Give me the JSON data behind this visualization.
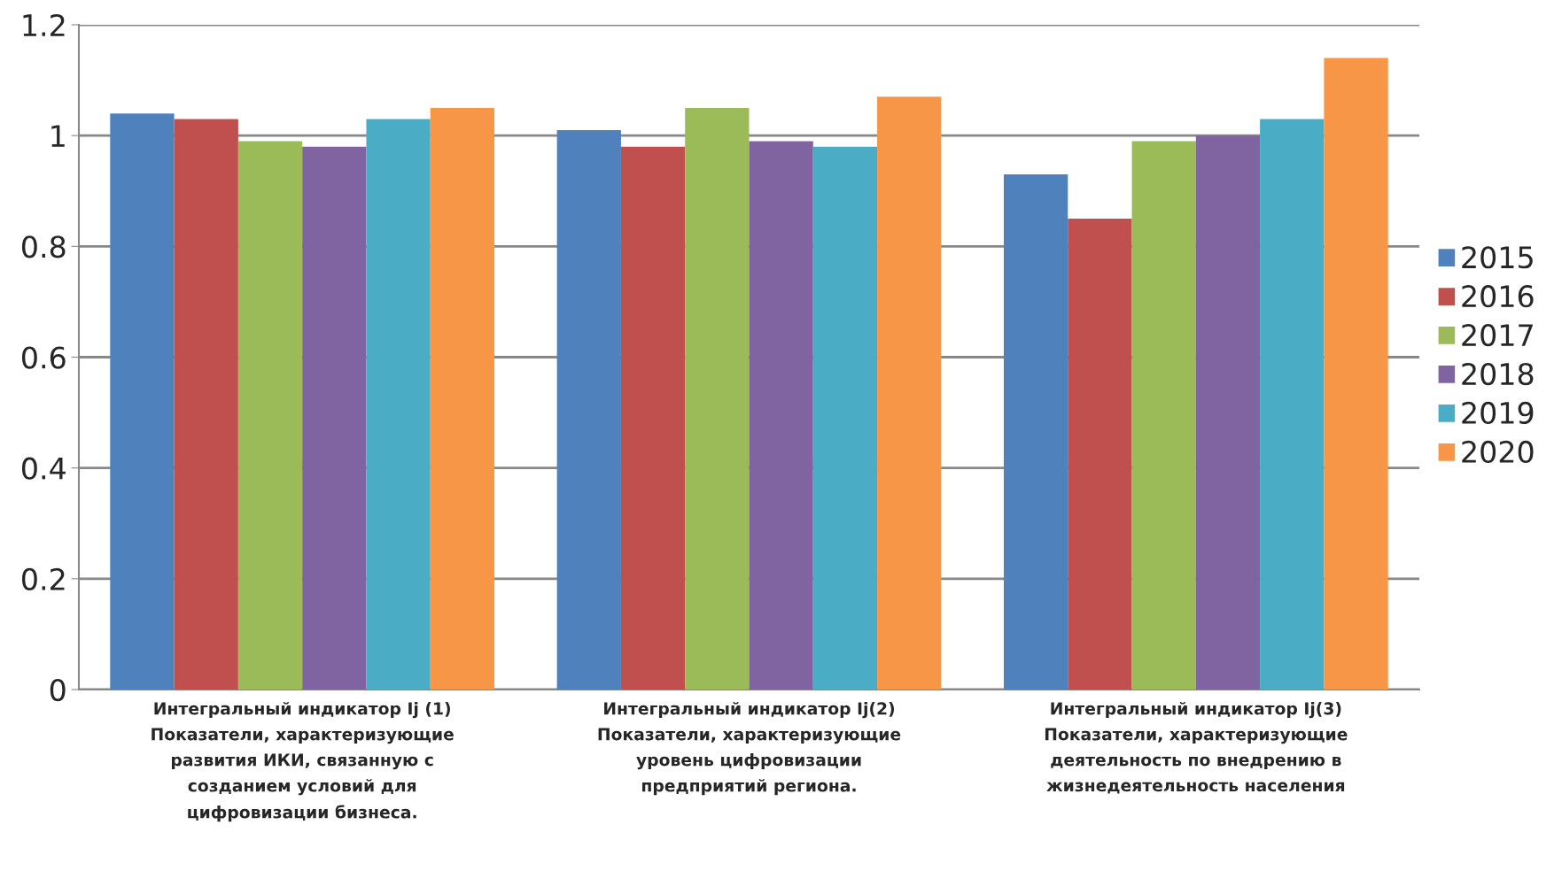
{
  "chart_data": {
    "type": "bar",
    "categories": [
      "Интегральный индикатор Ij (1)\nПоказатели, характеризующие\nразвития ИКИ, связанную с\nсозданием условий для\nцифровизации бизнеса.",
      "Интегральный индикатор Ij(2)\nПоказатели, характеризующие\nуровень цифровизации\nпредприятий региона.",
      "Интегральный индикатор Ij(3)\nПоказатели, характеризующие\nдеятельность по внедрению в\nжизнедеятельность населения"
    ],
    "series": [
      {
        "name": "2015",
        "color": "#4f81bd",
        "values": [
          1.04,
          1.01,
          0.93
        ]
      },
      {
        "name": "2016",
        "color": "#c0504d",
        "values": [
          1.03,
          0.98,
          0.85
        ]
      },
      {
        "name": "2017",
        "color": "#9bbb59",
        "values": [
          0.99,
          1.05,
          0.99
        ]
      },
      {
        "name": "2018",
        "color": "#8064a2",
        "values": [
          0.98,
          0.99,
          1.0
        ]
      },
      {
        "name": "2019",
        "color": "#4bacc6",
        "values": [
          1.03,
          0.98,
          1.03
        ]
      },
      {
        "name": "2020",
        "color": "#f79646",
        "values": [
          1.05,
          1.07,
          1.14
        ]
      }
    ],
    "ylim": [
      0,
      1.2
    ],
    "yticks": [
      {
        "value": 0,
        "label": "0"
      },
      0.2,
      0.4,
      0.6,
      0.8,
      {
        "value": 1,
        "label": "1"
      },
      1.2
    ],
    "grid": "y",
    "legend": "right"
  }
}
